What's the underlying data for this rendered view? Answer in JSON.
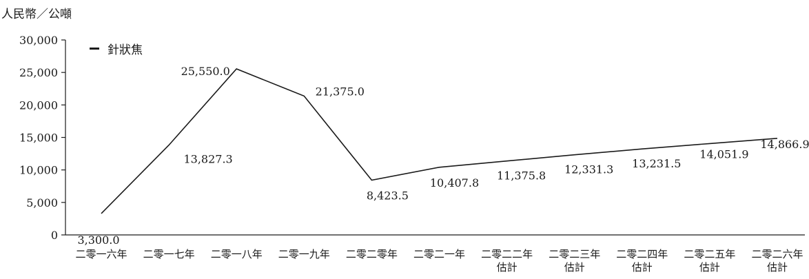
{
  "chart_data": {
    "type": "line",
    "y_unit_label": "人民幣／公噸",
    "categories": [
      [
        "二零一六年"
      ],
      [
        "二零一七年"
      ],
      [
        "二零一八年"
      ],
      [
        "二零一九年"
      ],
      [
        "二零二零年"
      ],
      [
        "二零二一年"
      ],
      [
        "二零二二年",
        "估計"
      ],
      [
        "二零二三年",
        "估計"
      ],
      [
        "二零二四年",
        "估計"
      ],
      [
        "二零二五年",
        "估計"
      ],
      [
        "二零二六年",
        "估計"
      ]
    ],
    "series": [
      {
        "name": "針狀焦",
        "values": [
          3300.0,
          13827.3,
          25550.0,
          21375.0,
          8423.5,
          10407.8,
          11375.8,
          12331.3,
          13231.5,
          14051.9,
          14866.9
        ],
        "value_labels": [
          "3,300.0",
          "13,827.3",
          "25,550.0",
          "21,375.0",
          "8,423.5",
          "10,407.8",
          "11,375.8",
          "12,331.3",
          "13,231.5",
          "14,051.9",
          "14,866.9"
        ],
        "color": "#1a1a1a"
      }
    ],
    "ylim": [
      0,
      30000
    ],
    "y_ticks": [
      0,
      5000,
      10000,
      15000,
      20000,
      25000,
      30000
    ],
    "y_tick_labels": [
      "0",
      "5,000",
      "10,000",
      "15,000",
      "20,000",
      "25,000",
      "30,000"
    ],
    "grid": false,
    "legend": "top-left"
  }
}
